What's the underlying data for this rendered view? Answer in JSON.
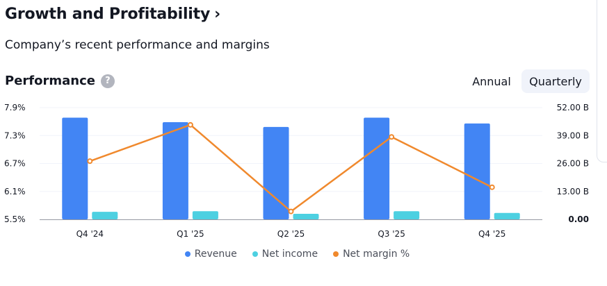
{
  "header": {
    "title": "Growth and Profitability",
    "chevron": "›"
  },
  "subtitle": "Company’s recent performance and margins",
  "performance": {
    "title": "Performance",
    "help": "?",
    "toggles": {
      "annual": "Annual",
      "quarterly": "Quarterly",
      "selected": "Quarterly"
    }
  },
  "colors": {
    "revenue": "#4285f4",
    "net_income": "#4dd0e1",
    "net_margin": "#f0892d"
  },
  "chart_data": {
    "type": "bar",
    "categories": [
      "Q4 '24",
      "Q1 '25",
      "Q2 '25",
      "Q3 '25",
      "Q4 '25"
    ],
    "series": [
      {
        "name": "Revenue",
        "axis": "right",
        "values": [
          47.3,
          45.2,
          43.0,
          47.3,
          44.6
        ]
      },
      {
        "name": "Net income",
        "axis": "right",
        "values": [
          3.5,
          3.8,
          2.6,
          3.8,
          3.0
        ]
      },
      {
        "name": "Net margin %",
        "axis": "left",
        "type": "line",
        "values": [
          6.75,
          7.53,
          5.67,
          7.27,
          6.19
        ]
      }
    ],
    "left_axis": {
      "ticks": [
        "7.9%",
        "7.3%",
        "6.7%",
        "6.1%",
        "5.5%"
      ],
      "values": [
        7.9,
        7.3,
        6.7,
        6.1,
        5.5
      ],
      "range": [
        5.5,
        7.9
      ]
    },
    "right_axis": {
      "ticks": [
        "52.00 B",
        "39.00 B",
        "26.00 B",
        "13.00 B",
        "0.00"
      ],
      "values": [
        52,
        39,
        26,
        13,
        0
      ],
      "range": [
        0,
        52
      ]
    },
    "legend": [
      "Revenue",
      "Net income",
      "Net margin %"
    ]
  }
}
